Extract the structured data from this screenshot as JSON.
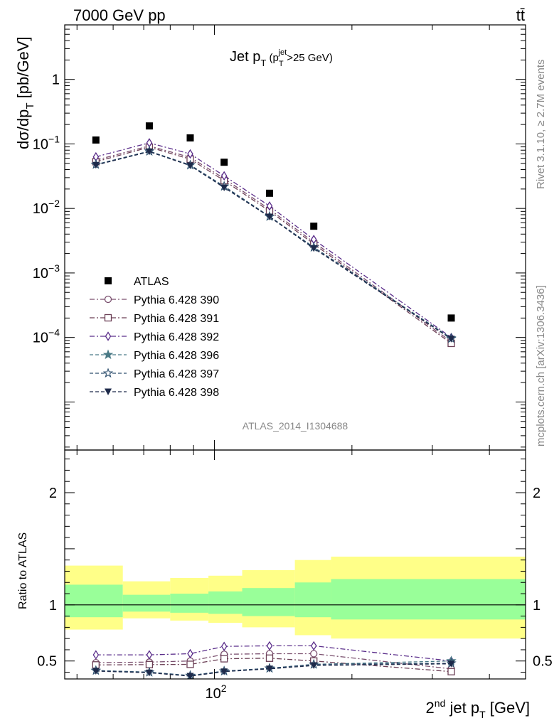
{
  "header": {
    "energy_label": "7000 GeV pp",
    "process_label": "tt̄"
  },
  "side_text": {
    "rivet": "Rivet 3.1.10, ≥ 2.7M events",
    "mcplots": "mcplots.cern.ch [arXiv:1306.3436]"
  },
  "colors": {
    "atlas": "#000000",
    "p390": "#7a4f6e",
    "p391": "#6b3f55",
    "p392": "#5a2d8a",
    "p396": "#4a7a86",
    "p397": "#2e4f6e",
    "p398": "#1e2a4a",
    "band_inner": "#99ff99",
    "band_outer": "#ffff88"
  },
  "chart_data": [
    {
      "type": "scatter",
      "title": "Jet p_T (p_T^jet>25 GeV)",
      "analysis_label": "ATLAS_2014_I1304688",
      "ylabel": "dσ/dp_T [pb/GeV]",
      "xlabel": "",
      "x_scale": "log",
      "y_scale": "log",
      "xlim": [
        47,
        480
      ],
      "ylim": [
        1.8e-06,
        7
      ],
      "y_ticks": [
        {
          "v": 1,
          "text": "1"
        },
        {
          "v": 0.1,
          "text": "10",
          "sup": "−1"
        },
        {
          "v": 0.01,
          "text": "10",
          "sup": "−2"
        },
        {
          "v": 0.001,
          "text": "10",
          "sup": "−3"
        },
        {
          "v": 0.0001,
          "text": "10",
          "sup": "−4"
        }
      ],
      "legend_position": "bottom-left",
      "x": [
        55,
        72,
        88.5,
        105,
        132,
        165,
        330
      ],
      "series": [
        {
          "name": "ATLAS",
          "marker": "filled-square",
          "values": [
            0.115,
            0.19,
            0.124,
            0.052,
            0.0172,
            0.0053,
            0.0002
          ]
        },
        {
          "name": "Pythia 6.428 390",
          "marker": "open-circle",
          "values": [
            0.056,
            0.093,
            0.062,
            0.029,
            0.0097,
            0.003,
            8.6e-05
          ]
        },
        {
          "name": "Pythia 6.428 391",
          "marker": "open-square",
          "values": [
            0.053,
            0.089,
            0.058,
            0.027,
            0.0091,
            0.0028,
            8.1e-05
          ]
        },
        {
          "name": "Pythia 6.428 392",
          "marker": "open-diamond",
          "values": [
            0.063,
            0.104,
            0.07,
            0.032,
            0.0109,
            0.0033,
            0.0001
          ]
        },
        {
          "name": "Pythia 6.428 396",
          "marker": "filled-star",
          "values": [
            0.048,
            0.077,
            0.047,
            0.022,
            0.0075,
            0.0025,
            9.8e-05
          ]
        },
        {
          "name": "Pythia 6.428 397",
          "marker": "open-star",
          "values": [
            0.048,
            0.077,
            0.047,
            0.022,
            0.0075,
            0.0025,
            9.6e-05
          ]
        },
        {
          "name": "Pythia 6.428 398",
          "marker": "filled-triangle-down",
          "values": [
            0.047,
            0.076,
            0.046,
            0.021,
            0.0074,
            0.0024,
            9.5e-05
          ]
        }
      ]
    },
    {
      "type": "scatter",
      "ylabel": "Ratio to ATLAS",
      "xlabel": "2^nd jet p_T [GeV]",
      "x_scale": "log",
      "xlim": [
        47,
        480
      ],
      "ylim": [
        0.34,
        2.38
      ],
      "y_ticks": [
        {
          "v": 0.5,
          "text": "0.5"
        },
        {
          "v": 1,
          "text": "1"
        },
        {
          "v": 2,
          "text": "2"
        }
      ],
      "x_ticks": [
        {
          "v": 100,
          "text": "10",
          "sup": "2"
        }
      ],
      "bands": {
        "edges": [
          47,
          63,
          80,
          97,
          115,
          150,
          180,
          480
        ],
        "inner_low": [
          0.89,
          0.94,
          0.93,
          0.92,
          0.9,
          0.89,
          0.87
        ],
        "inner_high": [
          1.18,
          1.09,
          1.1,
          1.12,
          1.15,
          1.2,
          1.23
        ],
        "outer_low": [
          0.78,
          0.88,
          0.86,
          0.84,
          0.8,
          0.73,
          0.7
        ],
        "outer_high": [
          1.35,
          1.21,
          1.24,
          1.26,
          1.31,
          1.4,
          1.43
        ]
      },
      "x": [
        55,
        72,
        88.5,
        105,
        132,
        165,
        330
      ],
      "series": [
        {
          "name": "Pythia 6.428 390",
          "marker": "open-circle",
          "values": [
            0.485,
            0.49,
            0.5,
            0.56,
            0.565,
            0.565,
            0.43
          ]
        },
        {
          "name": "Pythia 6.428 391",
          "marker": "open-square",
          "values": [
            0.465,
            0.468,
            0.47,
            0.52,
            0.525,
            0.5,
            0.405
          ]
        },
        {
          "name": "Pythia 6.428 392",
          "marker": "open-diamond",
          "values": [
            0.555,
            0.555,
            0.565,
            0.63,
            0.635,
            0.635,
            0.5
          ]
        },
        {
          "name": "Pythia 6.428 396",
          "marker": "filled-star",
          "values": [
            0.415,
            0.4,
            0.37,
            0.41,
            0.435,
            0.47,
            0.5
          ]
        },
        {
          "name": "Pythia 6.428 397",
          "marker": "open-star",
          "values": [
            0.415,
            0.4,
            0.37,
            0.41,
            0.435,
            0.47,
            0.48
          ]
        },
        {
          "name": "Pythia 6.428 398",
          "marker": "filled-triangle-down",
          "values": [
            0.41,
            0.395,
            0.365,
            0.405,
            0.43,
            0.46,
            0.475
          ]
        }
      ]
    }
  ]
}
